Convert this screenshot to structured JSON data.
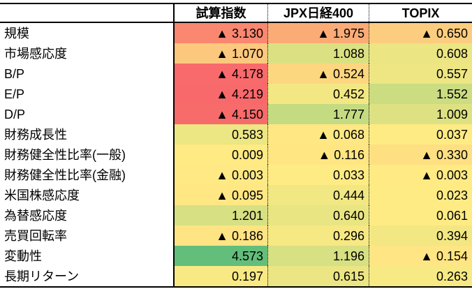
{
  "table": {
    "corner_label": "",
    "columns": [
      "試算指数",
      "JPX日経400",
      "TOPIX"
    ],
    "negative_marker": "▲",
    "rows": [
      {
        "label": "規模",
        "cells": [
          {
            "text": "▲ 3.130",
            "bg": "#FA8770"
          },
          {
            "text": "▲ 1.975",
            "bg": "#FBAB76"
          },
          {
            "text": "▲ 0.650",
            "bg": "#FCCD7E"
          }
        ]
      },
      {
        "label": "市場感応度",
        "cells": [
          {
            "text": "▲ 1.070",
            "bg": "#FCC87D"
          },
          {
            "text": "1.088",
            "bg": "#DBE182"
          },
          {
            "text": "0.608",
            "bg": "#EBE583"
          }
        ]
      },
      {
        "label": "B/P",
        "cells": [
          {
            "text": "▲ 4.178",
            "bg": "#F86A6B"
          },
          {
            "text": "▲ 0.524",
            "bg": "#FDD680"
          },
          {
            "text": "0.557",
            "bg": "#EDE683"
          }
        ]
      },
      {
        "label": "E/P",
        "cells": [
          {
            "text": "▲ 4.219",
            "bg": "#F8696B"
          },
          {
            "text": "0.452",
            "bg": "#F2E783"
          },
          {
            "text": "1.552",
            "bg": "#CBDC81"
          }
        ]
      },
      {
        "label": "D/P",
        "cells": [
          {
            "text": "▲ 4.150",
            "bg": "#F86B6B"
          },
          {
            "text": "1.777",
            "bg": "#C5DB81"
          },
          {
            "text": "1.009",
            "bg": "#DEE182"
          }
        ]
      },
      {
        "label": "財務成長性",
        "cells": [
          {
            "text": "0.583",
            "bg": "#ECE683"
          },
          {
            "text": "▲ 0.068",
            "bg": "#FFE883"
          },
          {
            "text": "0.037",
            "bg": "#FFEB84"
          }
        ]
      },
      {
        "label": "財務健全性比率(一般)",
        "cells": [
          {
            "text": "0.009",
            "bg": "#FFEA84"
          },
          {
            "text": "▲ 0.116",
            "bg": "#FFE683"
          },
          {
            "text": "▲ 0.330",
            "bg": "#FEE082"
          }
        ]
      },
      {
        "label": "財務健全性比率(金融)",
        "cells": [
          {
            "text": "▲ 0.003",
            "bg": "#FFE984"
          },
          {
            "text": "0.033",
            "bg": "#FFEB84"
          },
          {
            "text": "▲ 0.003",
            "bg": "#FFEA84"
          }
        ]
      },
      {
        "label": "米国株感応度",
        "cells": [
          {
            "text": "▲ 0.095",
            "bg": "#FFE783"
          },
          {
            "text": "0.444",
            "bg": "#F1E783"
          },
          {
            "text": "0.023",
            "bg": "#FFEB84"
          }
        ]
      },
      {
        "label": "為替感応度",
        "cells": [
          {
            "text": "1.201",
            "bg": "#D7E082"
          },
          {
            "text": "0.640",
            "bg": "#EAE583"
          },
          {
            "text": "0.061",
            "bg": "#FEEB84"
          }
        ]
      },
      {
        "label": "売買回転率",
        "cells": [
          {
            "text": "▲ 0.186",
            "bg": "#FFE483"
          },
          {
            "text": "0.296",
            "bg": "#F6E883"
          },
          {
            "text": "0.394",
            "bg": "#F3E783"
          }
        ]
      },
      {
        "label": "変動性",
        "cells": [
          {
            "text": "4.573",
            "bg": "#63BE7B"
          },
          {
            "text": "1.196",
            "bg": "#D7E082"
          },
          {
            "text": "▲ 0.154",
            "bg": "#FFE583"
          }
        ]
      },
      {
        "label": "長期リターン",
        "cells": [
          {
            "text": "0.197",
            "bg": "#F9E984"
          },
          {
            "text": "0.615",
            "bg": "#EBE583"
          },
          {
            "text": "0.263",
            "bg": "#F7E984"
          }
        ]
      }
    ]
  },
  "chart_data": {
    "type": "heatmap",
    "title": "",
    "columns": [
      "試算指数",
      "JPX日経400",
      "TOPIX"
    ],
    "rows": [
      "規模",
      "市場感応度",
      "B/P",
      "E/P",
      "D/P",
      "財務成長性",
      "財務健全性比率(一般)",
      "財務健全性比率(金融)",
      "米国株感応度",
      "為替感応度",
      "売買回転率",
      "変動性",
      "長期リターン"
    ],
    "values": [
      [
        -3.13,
        -1.975,
        -0.65
      ],
      [
        -1.07,
        1.088,
        0.608
      ],
      [
        -4.178,
        -0.524,
        0.557
      ],
      [
        -4.219,
        0.452,
        1.552
      ],
      [
        -4.15,
        1.777,
        1.009
      ],
      [
        0.583,
        -0.068,
        0.037
      ],
      [
        0.009,
        -0.116,
        -0.33
      ],
      [
        -0.003,
        0.033,
        -0.003
      ],
      [
        -0.095,
        0.444,
        0.023
      ],
      [
        1.201,
        0.64,
        0.061
      ],
      [
        -0.186,
        0.296,
        0.394
      ],
      [
        4.573,
        1.196,
        -0.154
      ],
      [
        0.197,
        0.615,
        0.263
      ]
    ],
    "negative_marker": "▲",
    "value_format": "3 decimals, negatives shown with ▲ prefix",
    "colorscale": {
      "min_color": "#F8696B",
      "mid_color": "#FFEB84",
      "max_color": "#63BE7B",
      "min_value": -4.219,
      "max_value": 4.573
    },
    "layout_hints": {
      "grid": "solid black divider after row-label column, dotted dividers between value columns, thick black top/bottom/header borders, no horizontal lines between data rows"
    }
  }
}
